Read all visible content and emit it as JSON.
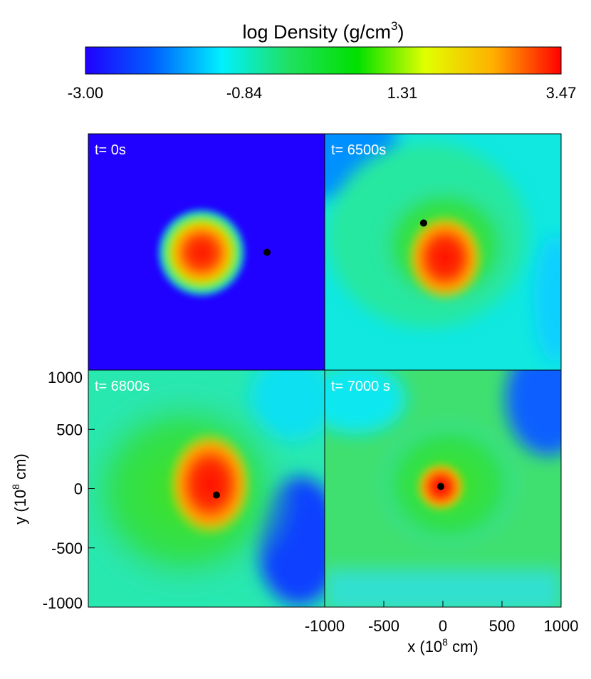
{
  "chart_data": {
    "type": "heatmap-panels",
    "title": {
      "text": "log Density (g/cm",
      "sup": "3",
      "end": ")"
    },
    "colorbar": {
      "clim": [
        -3,
        3.47
      ],
      "ticks": [
        {
          "value": -3,
          "label": "-3.00"
        },
        -0.84,
        1.31,
        3.47
      ],
      "colors": [
        "#2000ff",
        "#0060ff",
        "#00f0ff",
        "#20e060",
        "#00e000",
        "#e0ff00",
        "#ffb000",
        "#ff0000"
      ]
    },
    "x_label": {
      "text": "x (10",
      "sup": "8",
      "end": " cm)"
    },
    "y_label": {
      "text": "y (10",
      "sup": "8",
      "end": " cm)"
    },
    "xlim": [
      -1000,
      1000
    ],
    "ylim": [
      -1000,
      1000
    ],
    "xticks": [
      -1000,
      -500,
      0,
      500,
      1000
    ],
    "yticks": [
      -1000,
      -500,
      0,
      500,
      1000
    ],
    "panels": [
      {
        "title": "t= 0s",
        "dot": [
          512,
          0
        ]
      },
      {
        "title": "t= 6500s",
        "dot": [
          -163,
          247
        ]
      },
      {
        "title": "t= 6800s",
        "dot": [
          84,
          -54
        ]
      },
      {
        "title": "t= 7000 s",
        "dot": [
          -18,
          18
        ]
      }
    ],
    "dot_color": "#000000"
  }
}
